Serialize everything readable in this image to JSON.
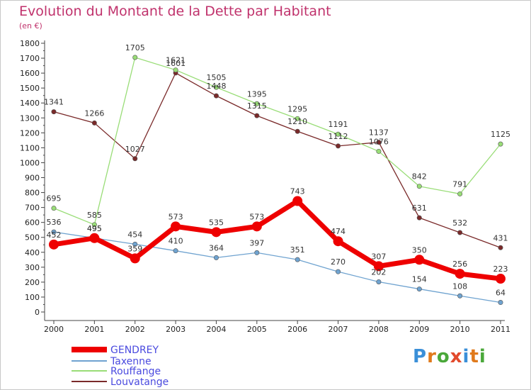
{
  "title": "Evolution du Montant de la Dette par Habitant",
  "unit": "(en €)",
  "logo": {
    "text": "Proxiti",
    "letter_colors": [
      "#3a8fd8",
      "#e07a1c",
      "#4aa83a",
      "#e24a2c",
      "#3a8fd8",
      "#e07a1c",
      "#4aa83a"
    ]
  },
  "chart_data": {
    "type": "line",
    "title": "Evolution du Montant de la Dette par Habitant",
    "ylabel": "(en €)",
    "xlabel": "",
    "x": [
      "2000",
      "2001",
      "2002",
      "2003",
      "2004",
      "2005",
      "2006",
      "2007",
      "2008",
      "2009",
      "2010",
      "2011"
    ],
    "ylim": [
      0,
      1800
    ],
    "yticks": [
      0,
      100,
      200,
      300,
      400,
      500,
      600,
      700,
      800,
      900,
      1000,
      1100,
      1200,
      1300,
      1400,
      1500,
      1600,
      1700,
      1800
    ],
    "grid": false,
    "legend": "bottom-left",
    "series": [
      {
        "name": "GENDREY",
        "color": "#ee0000",
        "values": [
          452,
          495,
          359,
          573,
          535,
          573,
          743,
          474,
          307,
          350,
          256,
          223
        ]
      },
      {
        "name": "Taxenne",
        "color": "#6fa3d0",
        "values": [
          536,
          495,
          454,
          410,
          364,
          397,
          351,
          270,
          202,
          154,
          108,
          64
        ]
      },
      {
        "name": "Rouffange",
        "color": "#99dd77",
        "values": [
          695,
          585,
          1705,
          1621,
          1505,
          1395,
          1295,
          1191,
          1076,
          842,
          791,
          1125
        ]
      },
      {
        "name": "Louvatange",
        "color": "#7a2a2a",
        "values": [
          1341,
          1266,
          1027,
          1601,
          1448,
          1315,
          1210,
          1112,
          1137,
          631,
          532,
          431
        ]
      }
    ]
  }
}
